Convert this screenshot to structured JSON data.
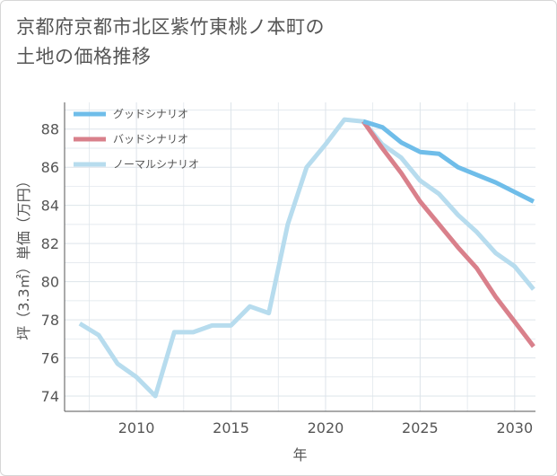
{
  "title": {
    "line1": "京都府京都市北区紫竹東桃ノ本町の",
    "line2": "土地の価格推移"
  },
  "colors": {
    "good": "#6fbde9",
    "bad": "#d9808b",
    "normal": "#b7dcee",
    "grid": "#dde4ea",
    "axis": "#555555",
    "text": "#555555"
  },
  "chart_data": {
    "type": "line",
    "xlabel": "年",
    "ylabel": "坪（3.3㎡）単価（万円）",
    "xlim": [
      2006.2,
      2031.1
    ],
    "ylim": [
      73.2,
      89.4
    ],
    "xticks": [
      2010,
      2015,
      2020,
      2025,
      2030
    ],
    "yticks": [
      74,
      76,
      78,
      80,
      82,
      84,
      86,
      88
    ],
    "grid": true,
    "legend_position": "top-left",
    "series": [
      {
        "name": "グッドシナリオ",
        "key": "good",
        "x": [
          2022,
          2023,
          2024,
          2025,
          2026,
          2027,
          2028,
          2029,
          2030,
          2031
        ],
        "y": [
          88.4,
          88.1,
          87.3,
          86.8,
          86.7,
          86.0,
          85.6,
          85.2,
          84.7,
          84.2
        ]
      },
      {
        "name": "バッドシナリオ",
        "key": "bad",
        "x": [
          2022,
          2023,
          2024,
          2025,
          2026,
          2027,
          2028,
          2029,
          2030,
          2031
        ],
        "y": [
          88.4,
          87.0,
          85.7,
          84.2,
          83.0,
          81.8,
          80.7,
          79.2,
          77.9,
          76.6
        ]
      },
      {
        "name": "ノーマルシナリオ",
        "key": "normal",
        "x": [
          2007,
          2008,
          2009,
          2010,
          2011,
          2012,
          2013,
          2014,
          2015,
          2016,
          2017,
          2018,
          2019,
          2020,
          2021,
          2022,
          2023,
          2024,
          2025,
          2026,
          2027,
          2028,
          2029,
          2030,
          2031
        ],
        "y": [
          77.8,
          77.2,
          75.7,
          75.0,
          74.0,
          77.35,
          77.35,
          77.7,
          77.7,
          78.7,
          78.35,
          83.0,
          86.0,
          87.2,
          88.5,
          88.4,
          87.2,
          86.5,
          85.3,
          84.6,
          83.5,
          82.6,
          81.5,
          80.8,
          79.6
        ]
      }
    ]
  }
}
